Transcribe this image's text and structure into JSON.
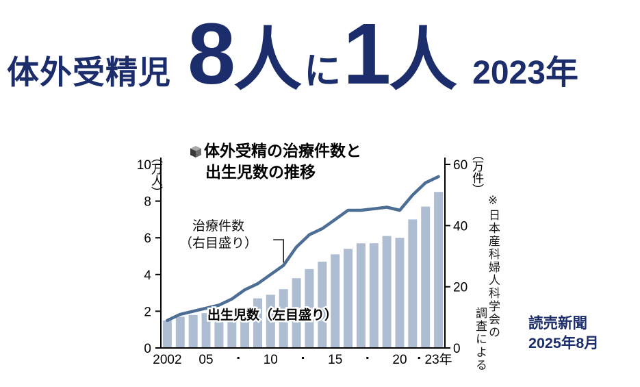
{
  "colors": {
    "headline_navy": "#1c2d6b",
    "bar": "#aebdd2",
    "line": "#4c6d94",
    "axis": "#000000"
  },
  "headline": {
    "prefix": "体外受精児",
    "count_left": "8",
    "unit_left": "人",
    "particle": "に",
    "count_right": "1",
    "unit_right": "人",
    "year": "2023年"
  },
  "chart": {
    "title_line1": "体外受精の治療件数と",
    "title_line2": "出生児数の推移",
    "legend": {
      "line1": "治療件数",
      "line2": "（右目盛り）"
    },
    "left_unit": "（万人）",
    "right_unit": "（万件）"
  },
  "chart_data": {
    "type": "combo",
    "title": "体外受精の治療件数と出生児数の推移",
    "categories": [
      2002,
      2003,
      2004,
      2005,
      2006,
      2007,
      2008,
      2009,
      2010,
      2011,
      2012,
      2013,
      2014,
      2015,
      2016,
      2017,
      2018,
      2019,
      2020,
      2021,
      2022,
      2023
    ],
    "series": [
      {
        "name": "出生児数",
        "type": "bar",
        "axis": "left",
        "unit": "万人",
        "values": [
          1.5,
          1.7,
          1.8,
          1.9,
          2.0,
          2.0,
          2.2,
          2.7,
          2.9,
          3.2,
          3.8,
          4.3,
          4.7,
          5.1,
          5.4,
          5.7,
          5.7,
          6.1,
          6.0,
          7.0,
          7.7,
          8.5
        ]
      },
      {
        "name": "治療件数",
        "type": "line",
        "axis": "right",
        "unit": "万件",
        "values": [
          9,
          11,
          12,
          13,
          14,
          16,
          19,
          21,
          24,
          27,
          33,
          37,
          39,
          42,
          45,
          45,
          45.5,
          46,
          45,
          50,
          54,
          56
        ]
      }
    ],
    "axes": {
      "left": {
        "unit": "万人",
        "range": [
          0,
          10
        ],
        "ticks": [
          0,
          2,
          4,
          6,
          8,
          10
        ]
      },
      "right": {
        "unit": "万件",
        "range": [
          0,
          60
        ],
        "ticks": [
          0,
          20,
          40,
          60
        ]
      }
    },
    "x_ticks": [
      {
        "year": 2002,
        "label": "2002"
      },
      {
        "year": 2005,
        "label": "05"
      },
      {
        "year": 2010,
        "label": "10"
      },
      {
        "year": 2015,
        "label": "15"
      },
      {
        "year": 2020,
        "label": "20"
      },
      {
        "year": 2023,
        "label": "23年"
      }
    ],
    "annotations": [
      {
        "text": "出生児数（左目盛り）",
        "target": "bars"
      },
      {
        "text": "治療件数（右目盛り）",
        "target": "line"
      }
    ],
    "colors": {
      "bar": "#aebdd2",
      "line": "#4c6d94"
    },
    "grid": false,
    "legend_position": "inside"
  },
  "source_note": {
    "full": "※日本産科婦人科学会の調査による",
    "column1": "※日本産科婦人科学会の",
    "column2": "調査による"
  },
  "credit": {
    "publisher": "読売新聞",
    "date": "2025年8月"
  }
}
